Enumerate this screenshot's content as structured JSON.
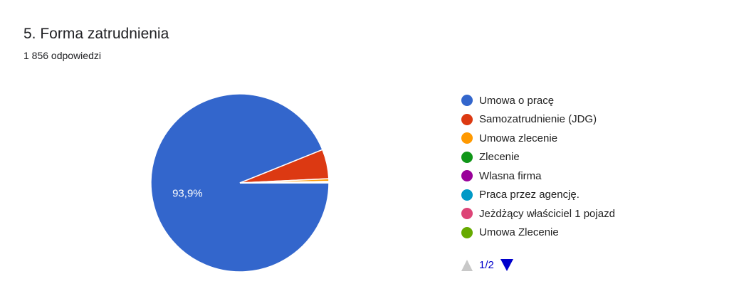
{
  "title": "5. Forma zatrudnienia",
  "subtitle": "1 856 odpowiedzi",
  "pager": {
    "label": "1/2"
  },
  "chart_data": {
    "type": "pie",
    "title": "5. Forma zatrudnienia",
    "categories": [
      "Umowa o pracę",
      "Samozatrudnienie (JDG)",
      "Umowa zlecenie",
      "Zlecenie",
      "Wlasna firma",
      "Praca przez agencję.",
      "Jeżdżący właściciel 1 pojazd",
      "Umowa Zlecenie"
    ],
    "values": [
      1743,
      99,
      9,
      1,
      1,
      1,
      1,
      1
    ],
    "colors": [
      "#3366cc",
      "#dc3912",
      "#ff9900",
      "#109618",
      "#990099",
      "#0099c6",
      "#dd4477",
      "#66aa00"
    ],
    "data_labels": [
      "93,9%",
      "",
      "",
      "",
      "",
      "",
      "",
      ""
    ],
    "legend_position": "right"
  }
}
